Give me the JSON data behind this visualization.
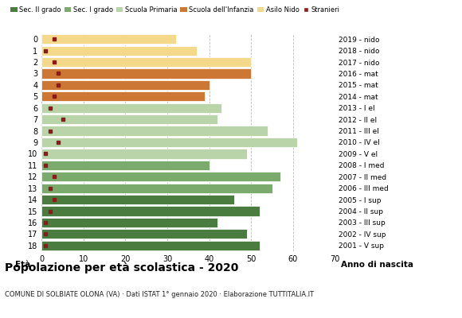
{
  "ages": [
    18,
    17,
    16,
    15,
    14,
    13,
    12,
    11,
    10,
    9,
    8,
    7,
    6,
    5,
    4,
    3,
    2,
    1,
    0
  ],
  "bar_values": [
    52,
    49,
    42,
    52,
    46,
    55,
    57,
    40,
    49,
    61,
    54,
    42,
    43,
    39,
    40,
    50,
    50,
    37,
    32
  ],
  "stranieri": [
    1,
    1,
    1,
    2,
    3,
    2,
    3,
    1,
    1,
    4,
    2,
    5,
    2,
    3,
    4,
    4,
    3,
    1,
    3
  ],
  "right_labels": [
    "2001 - V sup",
    "2002 - IV sup",
    "2003 - III sup",
    "2004 - II sup",
    "2005 - I sup",
    "2006 - III med",
    "2007 - II med",
    "2008 - I med",
    "2009 - V el",
    "2010 - IV el",
    "2011 - III el",
    "2012 - II el",
    "2013 - I el",
    "2014 - mat",
    "2015 - mat",
    "2016 - mat",
    "2017 - nido",
    "2018 - nido",
    "2019 - nido"
  ],
  "bar_colors": [
    "#4a7c3f",
    "#4a7c3f",
    "#4a7c3f",
    "#4a7c3f",
    "#4a7c3f",
    "#7aab6d",
    "#7aab6d",
    "#7aab6d",
    "#b8d4a8",
    "#b8d4a8",
    "#b8d4a8",
    "#b8d4a8",
    "#b8d4a8",
    "#cc7733",
    "#cc7733",
    "#cc7733",
    "#f5d98b",
    "#f5d98b",
    "#f5d98b"
  ],
  "legend_labels": [
    "Sec. II grado",
    "Sec. I grado",
    "Scuola Primaria",
    "Scuola dell'Infanzia",
    "Asilo Nido",
    "Stranieri"
  ],
  "legend_colors": [
    "#4a7c3f",
    "#7aab6d",
    "#b8d4a8",
    "#cc7733",
    "#f5d98b",
    "#8b1a1a"
  ],
  "title": "Popolazione per età scolastica - 2020",
  "subtitle": "COMUNE DI SOLBIATE OLONA (VA) · Dati ISTAT 1° gennaio 2020 · Elaborazione TUTTITALIA.IT",
  "xlabel_eta": "Età",
  "xlabel_anno": "Anno di nascita",
  "xlim_max": 70,
  "xticks": [
    0,
    10,
    20,
    30,
    40,
    50,
    60,
    70
  ],
  "stranieri_color": "#8b1a1a",
  "background_color": "#ffffff",
  "grid_color": "#bbbbbb"
}
